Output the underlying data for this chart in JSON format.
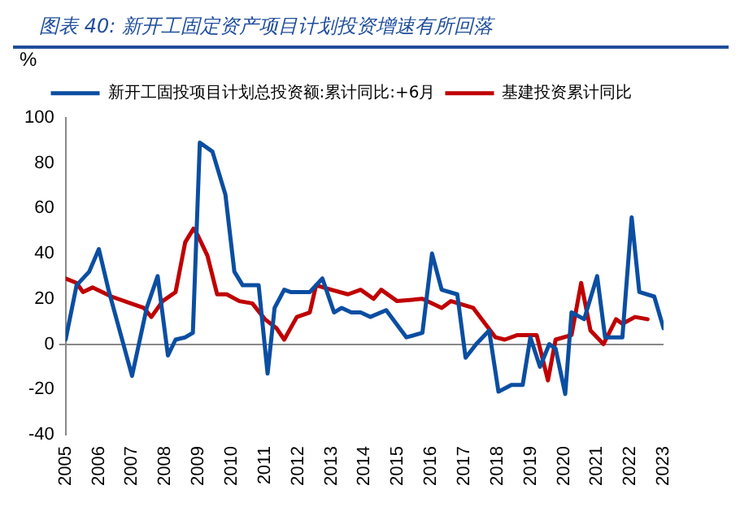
{
  "chart_data": {
    "type": "line",
    "title": "图表 40: 新开工固定资产项目计划投资增速有所回落",
    "ylabel": "%",
    "xlim": [
      2005,
      2023
    ],
    "xticks": [
      2005,
      2006,
      2007,
      2008,
      2009,
      2010,
      2011,
      2012,
      2013,
      2014,
      2015,
      2016,
      2017,
      2018,
      2019,
      2020,
      2021,
      2022,
      2023
    ],
    "ylim": [
      -40,
      100
    ],
    "yticks": [
      -40,
      -20,
      0,
      20,
      40,
      60,
      80,
      100
    ],
    "legend": "top",
    "marker": "none",
    "line_style": "solid",
    "series": [
      {
        "name": "新开工固投项目计划总投资额:累计同比:+6月",
        "color": "#0b4ea2",
        "x": [
          2005.0,
          2005.33,
          2005.71,
          2006.0,
          2006.29,
          2007.0,
          2007.44,
          2007.77,
          2008.08,
          2008.31,
          2008.6,
          2008.83,
          2009.04,
          2009.42,
          2009.81,
          2010.08,
          2010.33,
          2010.62,
          2010.81,
          2011.08,
          2011.29,
          2011.58,
          2011.77,
          2012.35,
          2012.73,
          2013.08,
          2013.31,
          2013.6,
          2013.88,
          2014.17,
          2014.65,
          2015.26,
          2015.74,
          2016.03,
          2016.32,
          2016.79,
          2017.04,
          2017.36,
          2017.75,
          2018.03,
          2018.42,
          2018.76,
          2018.99,
          2019.28,
          2019.56,
          2019.75,
          2020.04,
          2020.23,
          2020.61,
          2021.0,
          2021.24,
          2021.76,
          2022.04,
          2022.27,
          2022.72,
          2023.0
        ],
        "values": [
          2,
          26,
          32,
          42,
          24,
          -14,
          16,
          30,
          -5,
          2,
          3,
          5,
          89,
          85,
          66,
          32,
          26,
          26,
          26,
          -13,
          16,
          24,
          23,
          23,
          29,
          14,
          16,
          14,
          14,
          12,
          15,
          3,
          5,
          40,
          24,
          22,
          -6,
          0,
          6,
          -21,
          -18,
          -18,
          3,
          -10,
          0,
          -2,
          -22,
          14,
          11,
          30,
          3,
          3,
          56,
          23,
          21,
          7
        ]
      },
      {
        "name": "基建投资累计同比",
        "color": "#c00000",
        "x": [
          2005.0,
          2005.33,
          2005.52,
          2005.81,
          2006.38,
          2006.96,
          2007.35,
          2007.58,
          2007.92,
          2008.31,
          2008.6,
          2008.85,
          2008.98,
          2009.27,
          2009.56,
          2009.85,
          2010.23,
          2010.62,
          2011.0,
          2011.35,
          2011.58,
          2011.96,
          2012.35,
          2012.54,
          2013.0,
          2013.5,
          2013.88,
          2014.27,
          2014.5,
          2014.98,
          2015.74,
          2016.32,
          2016.6,
          2017.27,
          2017.94,
          2018.22,
          2018.6,
          2019.18,
          2019.52,
          2019.75,
          2020.23,
          2020.52,
          2020.8,
          2021.19,
          2021.57,
          2021.76,
          2022.14,
          2022.52
        ],
        "values": [
          29,
          27,
          23,
          25,
          21,
          18,
          16,
          12,
          19,
          23,
          45,
          51,
          48,
          39,
          22,
          22,
          19,
          18,
          11,
          7,
          2,
          12,
          14,
          26,
          24,
          22,
          24,
          20,
          24,
          19,
          20,
          16,
          19,
          16,
          3,
          2,
          4,
          4,
          -16,
          2,
          4,
          27,
          6,
          0,
          11,
          9,
          12,
          11
        ]
      }
    ]
  }
}
